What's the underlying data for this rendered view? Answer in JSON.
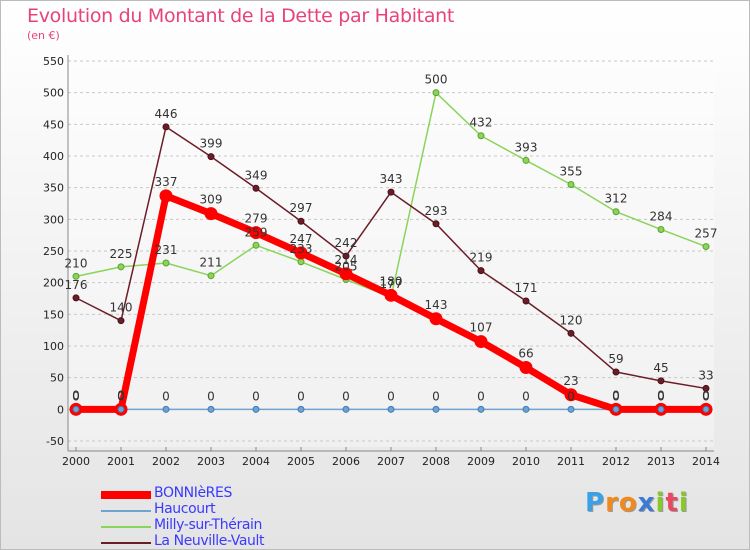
{
  "title": "Evolution du Montant de la Dette par Habitant",
  "subtitle": "(en €)",
  "logo": {
    "text": "Proxiti",
    "letters": [
      {
        "ch": "P",
        "color": "#3aa0e8"
      },
      {
        "ch": "r",
        "color": "#f08a1c"
      },
      {
        "ch": "o",
        "color": "#f08a1c"
      },
      {
        "ch": "x",
        "color": "#3a7ad8"
      },
      {
        "ch": "i",
        "color": "#88c828"
      },
      {
        "ch": "t",
        "color": "#e84860"
      },
      {
        "ch": "i",
        "color": "#88c828"
      }
    ]
  },
  "chart_data": {
    "type": "line",
    "x": [
      2000,
      2001,
      2002,
      2003,
      2004,
      2005,
      2006,
      2007,
      2008,
      2009,
      2010,
      2011,
      2012,
      2013,
      2014
    ],
    "ylim": [
      -50,
      550
    ],
    "yticks": [
      -50,
      0,
      50,
      100,
      150,
      200,
      250,
      300,
      350,
      400,
      450,
      500,
      550
    ],
    "grid": "horizontal-dashed",
    "legend_position": "bottom-left",
    "series": [
      {
        "name": "Haucourt",
        "color": "#6fa3d2",
        "values": [
          0,
          0,
          0,
          0,
          0,
          0,
          0,
          0,
          0,
          0,
          0,
          0,
          0,
          0,
          0
        ],
        "labels": [
          "0",
          "0",
          "0",
          "0",
          "0",
          "0",
          "0",
          "0",
          "0",
          "0",
          "0",
          "0",
          "0",
          "0",
          "0"
        ]
      },
      {
        "name": "Milly-sur-Thérain",
        "color": "#8ad45a",
        "values": [
          210,
          225,
          231,
          211,
          259,
          233,
          205,
          177,
          500,
          432,
          393,
          355,
          312,
          284,
          257
        ],
        "labels": [
          "210",
          "225",
          "231",
          "211",
          "259",
          "233",
          "205",
          "177",
          "500",
          "432",
          "393",
          "355",
          "312",
          "284",
          "257"
        ]
      },
      {
        "name": "La Neuville-Vault",
        "color": "#6b1d27",
        "values": [
          176,
          140,
          446,
          399,
          349,
          297,
          242,
          343,
          293,
          219,
          171,
          120,
          59,
          45,
          33
        ],
        "labels": [
          "176",
          "140",
          "446",
          "399",
          "349",
          "297",
          "242",
          "343",
          "293",
          "219",
          "171",
          "120",
          "59",
          "45",
          "33"
        ]
      },
      {
        "name": "BONNIèRES",
        "color": "#ff0000",
        "values": [
          0,
          0,
          337,
          309,
          279,
          247,
          214,
          180,
          143,
          107,
          66,
          23,
          0,
          0,
          0
        ],
        "labels": [
          "0",
          "0",
          "337",
          "309",
          "279",
          "247",
          "214",
          "180",
          "143",
          "107",
          "66",
          "23",
          "0",
          "0",
          "0"
        ]
      }
    ],
    "legend_order": [
      "BONNIèRES",
      "Haucourt",
      "Milly-sur-Thérain",
      "La Neuville-Vault"
    ]
  }
}
